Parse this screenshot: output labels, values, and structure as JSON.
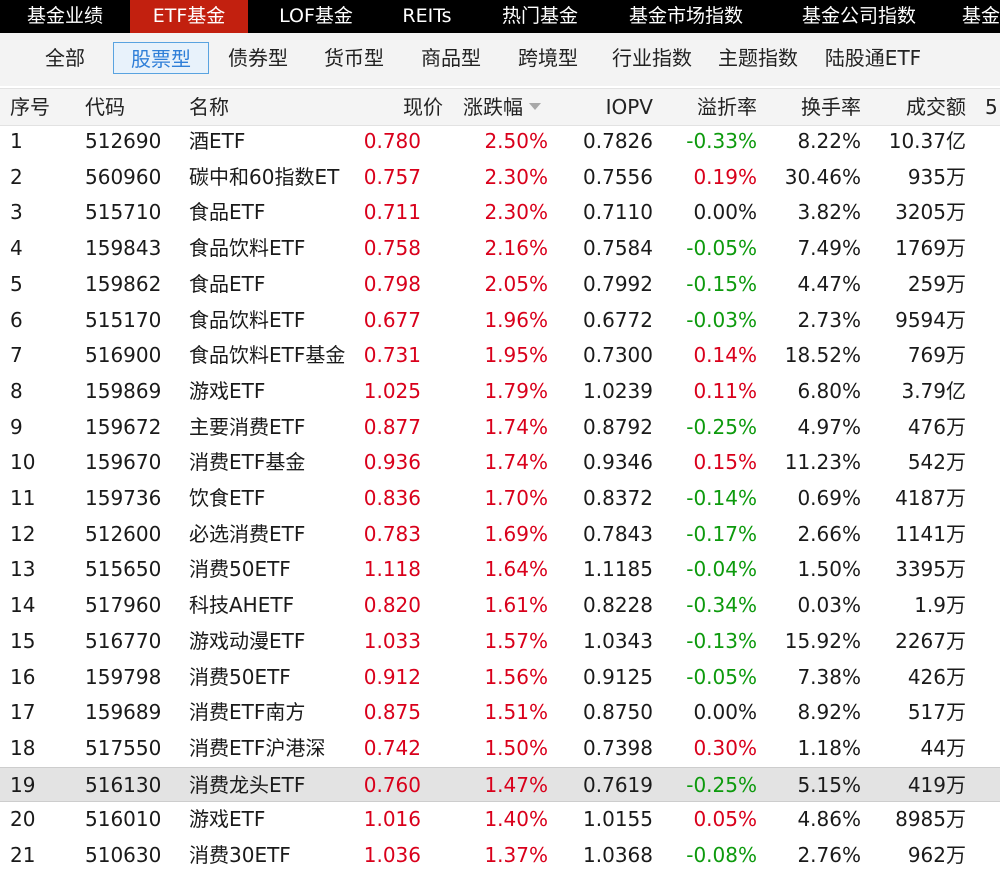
{
  "top_tabs": [
    "基金业绩",
    "ETF基金",
    "LOF基金",
    "REITs",
    "热门基金",
    "基金市场指数",
    "基金公司指数",
    "基金"
  ],
  "sub_tabs": [
    "全部",
    "股票型",
    "债券型",
    "货币型",
    "商品型",
    "跨境型",
    "行业指数",
    "主题指数",
    "陆股通ETF"
  ],
  "columns": [
    "序号",
    "代码",
    "名称",
    "现价",
    "涨跌幅",
    "IOPV",
    "溢折率",
    "换手率",
    "成交额",
    "5"
  ],
  "colors": {
    "up": "#d9001b",
    "down": "#0d9a0d",
    "active_tab": "#c2200f",
    "active_subtab": "#2f7fd8"
  },
  "rows": [
    {
      "no": "1",
      "code": "512690",
      "name": "酒ETF",
      "price": "0.780",
      "change": "2.50%",
      "iopv": "0.7826",
      "premium": "-0.33%",
      "turnover": "8.22%",
      "volume": "10.37亿"
    },
    {
      "no": "2",
      "code": "560960",
      "name": "碳中和60指数ET",
      "price": "0.757",
      "change": "2.30%",
      "iopv": "0.7556",
      "premium": "0.19%",
      "turnover": "30.46%",
      "volume": "935万"
    },
    {
      "no": "3",
      "code": "515710",
      "name": "食品ETF",
      "price": "0.711",
      "change": "2.30%",
      "iopv": "0.7110",
      "premium": "0.00%",
      "turnover": "3.82%",
      "volume": "3205万"
    },
    {
      "no": "4",
      "code": "159843",
      "name": "食品饮料ETF",
      "price": "0.758",
      "change": "2.16%",
      "iopv": "0.7584",
      "premium": "-0.05%",
      "turnover": "7.49%",
      "volume": "1769万"
    },
    {
      "no": "5",
      "code": "159862",
      "name": "食品ETF",
      "price": "0.798",
      "change": "2.05%",
      "iopv": "0.7992",
      "premium": "-0.15%",
      "turnover": "4.47%",
      "volume": "259万"
    },
    {
      "no": "6",
      "code": "515170",
      "name": "食品饮料ETF",
      "price": "0.677",
      "change": "1.96%",
      "iopv": "0.6772",
      "premium": "-0.03%",
      "turnover": "2.73%",
      "volume": "9594万"
    },
    {
      "no": "7",
      "code": "516900",
      "name": "食品饮料ETF基金",
      "price": "0.731",
      "change": "1.95%",
      "iopv": "0.7300",
      "premium": "0.14%",
      "turnover": "18.52%",
      "volume": "769万"
    },
    {
      "no": "8",
      "code": "159869",
      "name": "游戏ETF",
      "price": "1.025",
      "change": "1.79%",
      "iopv": "1.0239",
      "premium": "0.11%",
      "turnover": "6.80%",
      "volume": "3.79亿"
    },
    {
      "no": "9",
      "code": "159672",
      "name": "主要消费ETF",
      "price": "0.877",
      "change": "1.74%",
      "iopv": "0.8792",
      "premium": "-0.25%",
      "turnover": "4.97%",
      "volume": "476万"
    },
    {
      "no": "10",
      "code": "159670",
      "name": "消费ETF基金",
      "price": "0.936",
      "change": "1.74%",
      "iopv": "0.9346",
      "premium": "0.15%",
      "turnover": "11.23%",
      "volume": "542万"
    },
    {
      "no": "11",
      "code": "159736",
      "name": "饮食ETF",
      "price": "0.836",
      "change": "1.70%",
      "iopv": "0.8372",
      "premium": "-0.14%",
      "turnover": "0.69%",
      "volume": "4187万"
    },
    {
      "no": "12",
      "code": "512600",
      "name": "必选消费ETF",
      "price": "0.783",
      "change": "1.69%",
      "iopv": "0.7843",
      "premium": "-0.17%",
      "turnover": "2.66%",
      "volume": "1141万"
    },
    {
      "no": "13",
      "code": "515650",
      "name": "消费50ETF",
      "price": "1.118",
      "change": "1.64%",
      "iopv": "1.1185",
      "premium": "-0.04%",
      "turnover": "1.50%",
      "volume": "3395万"
    },
    {
      "no": "14",
      "code": "517960",
      "name": "科技AHETF",
      "price": "0.820",
      "change": "1.61%",
      "iopv": "0.8228",
      "premium": "-0.34%",
      "turnover": "0.03%",
      "volume": "1.9万"
    },
    {
      "no": "15",
      "code": "516770",
      "name": "游戏动漫ETF",
      "price": "1.033",
      "change": "1.57%",
      "iopv": "1.0343",
      "premium": "-0.13%",
      "turnover": "15.92%",
      "volume": "2267万"
    },
    {
      "no": "16",
      "code": "159798",
      "name": "消费50ETF",
      "price": "0.912",
      "change": "1.56%",
      "iopv": "0.9125",
      "premium": "-0.05%",
      "turnover": "7.38%",
      "volume": "426万"
    },
    {
      "no": "17",
      "code": "159689",
      "name": "消费ETF南方",
      "price": "0.875",
      "change": "1.51%",
      "iopv": "0.8750",
      "premium": "0.00%",
      "turnover": "8.92%",
      "volume": "517万"
    },
    {
      "no": "18",
      "code": "517550",
      "name": "消费ETF沪港深",
      "price": "0.742",
      "change": "1.50%",
      "iopv": "0.7398",
      "premium": "0.30%",
      "turnover": "1.18%",
      "volume": "44万"
    },
    {
      "no": "19",
      "code": "516130",
      "name": "消费龙头ETF",
      "price": "0.760",
      "change": "1.47%",
      "iopv": "0.7619",
      "premium": "-0.25%",
      "turnover": "5.15%",
      "volume": "419万",
      "selected": true
    },
    {
      "no": "20",
      "code": "516010",
      "name": "游戏ETF",
      "price": "1.016",
      "change": "1.40%",
      "iopv": "1.0155",
      "premium": "0.05%",
      "turnover": "4.86%",
      "volume": "8985万"
    },
    {
      "no": "21",
      "code": "510630",
      "name": "消费30ETF",
      "price": "1.036",
      "change": "1.37%",
      "iopv": "1.0368",
      "premium": "-0.08%",
      "turnover": "2.76%",
      "volume": "962万"
    }
  ]
}
